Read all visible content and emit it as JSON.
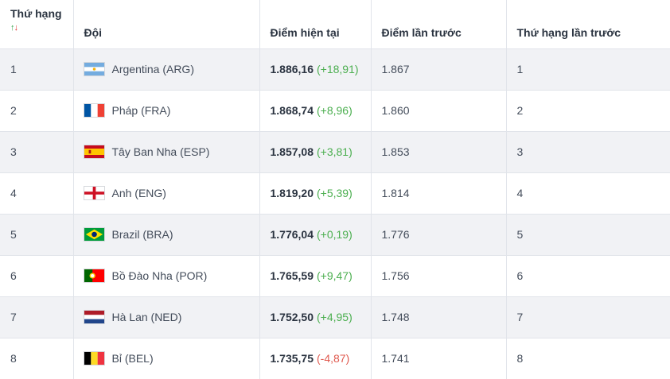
{
  "header": {
    "rank": "Thứ hạng",
    "sort_up": "↑",
    "sort_down": "↓",
    "team": "Đội",
    "current_points": "Điểm hiện tại",
    "previous_points": "Điểm lần trước",
    "previous_rank": "Thứ hạng lần trước"
  },
  "colors": {
    "positive": "#4caf50",
    "negative": "#e05a4f",
    "row_stripe": "#f1f2f5"
  },
  "rows": [
    {
      "rank": "1",
      "team": "Argentina (ARG)",
      "flag": "argentina-flag-icon",
      "points": "1.886,16",
      "change": "(+18,91)",
      "trend": "pos",
      "prev_points": "1.867",
      "prev_rank": "1"
    },
    {
      "rank": "2",
      "team": "Pháp (FRA)",
      "flag": "france-flag-icon",
      "points": "1.868,74",
      "change": "(+8,96)",
      "trend": "pos",
      "prev_points": "1.860",
      "prev_rank": "2"
    },
    {
      "rank": "3",
      "team": "Tây Ban Nha (ESP)",
      "flag": "spain-flag-icon",
      "points": "1.857,08",
      "change": "(+3,81)",
      "trend": "pos",
      "prev_points": "1.853",
      "prev_rank": "3"
    },
    {
      "rank": "4",
      "team": "Anh (ENG)",
      "flag": "england-flag-icon",
      "points": "1.819,20",
      "change": "(+5,39)",
      "trend": "pos",
      "prev_points": "1.814",
      "prev_rank": "4"
    },
    {
      "rank": "5",
      "team": "Brazil (BRA)",
      "flag": "brazil-flag-icon",
      "points": "1.776,04",
      "change": "(+0,19)",
      "trend": "pos",
      "prev_points": "1.776",
      "prev_rank": "5"
    },
    {
      "rank": "6",
      "team": "Bồ Đào Nha (POR)",
      "flag": "portugal-flag-icon",
      "points": "1.765,59",
      "change": "(+9,47)",
      "trend": "pos",
      "prev_points": "1.756",
      "prev_rank": "6"
    },
    {
      "rank": "7",
      "team": "Hà Lan (NED)",
      "flag": "netherlands-flag-icon",
      "points": "1.752,50",
      "change": "(+4,95)",
      "trend": "pos",
      "prev_points": "1.748",
      "prev_rank": "7"
    },
    {
      "rank": "8",
      "team": "Bỉ (BEL)",
      "flag": "belgium-flag-icon",
      "points": "1.735,75",
      "change": "(-4,87)",
      "trend": "neg",
      "prev_points": "1.741",
      "prev_rank": "8"
    }
  ]
}
